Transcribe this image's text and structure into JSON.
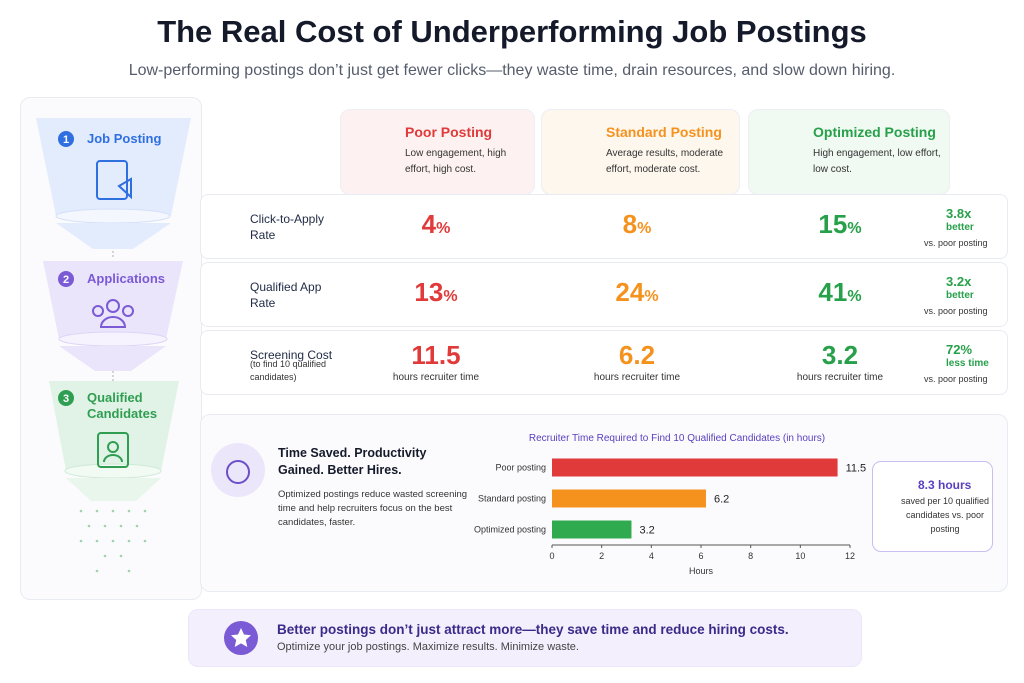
{
  "header": {
    "title": "The Real Cost of Underperforming Job Postings",
    "subtitle": "Low-performing postings don’t just get fewer clicks—they waste time, drain resources, and slow down hiring."
  },
  "funnel": [
    {
      "number": 1,
      "label": "Job Posting",
      "color": "#2f6fe0"
    },
    {
      "number": 2,
      "label": "Applications",
      "color": "#7b5ad6"
    },
    {
      "number": 3,
      "label": "Qualified Candidates",
      "color": "#2f9e52"
    }
  ],
  "columns": [
    {
      "title": "Poor Posting",
      "description": "Low engagement, high effort, high cost.",
      "color": "#e03a3a",
      "background": "#fdf2f1"
    },
    {
      "title": "Standard Posting",
      "description": "Average results, moderate effort, moderate cost.",
      "color": "#f5921e",
      "background": "#fef7ee"
    },
    {
      "title": "Optimized Posting",
      "description": "High engagement, low effort, low cost.",
      "color": "#27a04a",
      "background": "#f0f9f2"
    }
  ],
  "metrics": [
    {
      "label": "Click-to-Apply Rate",
      "values": [
        4,
        8,
        15
      ],
      "unit": "%",
      "unit_position": "inline",
      "comparison": {
        "value": "3.8x",
        "text": "better",
        "footer": "vs. poor posting",
        "arrow": "up"
      }
    },
    {
      "label": "Qualified App Rate",
      "values": [
        13,
        24,
        41
      ],
      "unit": "%",
      "unit_position": "inline",
      "comparison": {
        "value": "3.2x",
        "text": "better",
        "footer": "vs. poor posting",
        "arrow": "up"
      }
    },
    {
      "label": "Screening Cost",
      "note": "(to find 10 qualified candidates)",
      "values": [
        11.5,
        6.2,
        3.2
      ],
      "unit": "hours recruiter time",
      "unit_position": "below",
      "comparison": {
        "value": "72%",
        "text": "less time",
        "footer": "vs. poor posting",
        "arrow": "down"
      }
    }
  ],
  "summary": {
    "title": "Time Saved. Productivity Gained. Better Hires.",
    "text": "Optimized postings reduce wasted screening time and help recruiters focus on the best candidates, faster."
  },
  "chart_data": {
    "type": "bar",
    "orientation": "horizontal",
    "title": "Recruiter Time Required to Find 10 Qualified Candidates (in hours)",
    "categories": [
      "Poor posting",
      "Standard posting",
      "Optimized posting"
    ],
    "values": [
      11.5,
      6.2,
      3.2
    ],
    "colors": [
      "#e03a3a",
      "#f5921e",
      "#2faa4f"
    ],
    "xlabel": "Hours",
    "xlim": [
      0,
      12
    ],
    "xticks": [
      0,
      2,
      4,
      6,
      8,
      10,
      12
    ]
  },
  "callout": {
    "value": "8.3 hours",
    "text": "saved per 10 qualified candidates vs. poor posting"
  },
  "footer": {
    "title": "Better postings don’t just attract more—they save time and reduce hiring costs.",
    "text": "Optimize your job postings. Maximize results. Minimize waste."
  }
}
